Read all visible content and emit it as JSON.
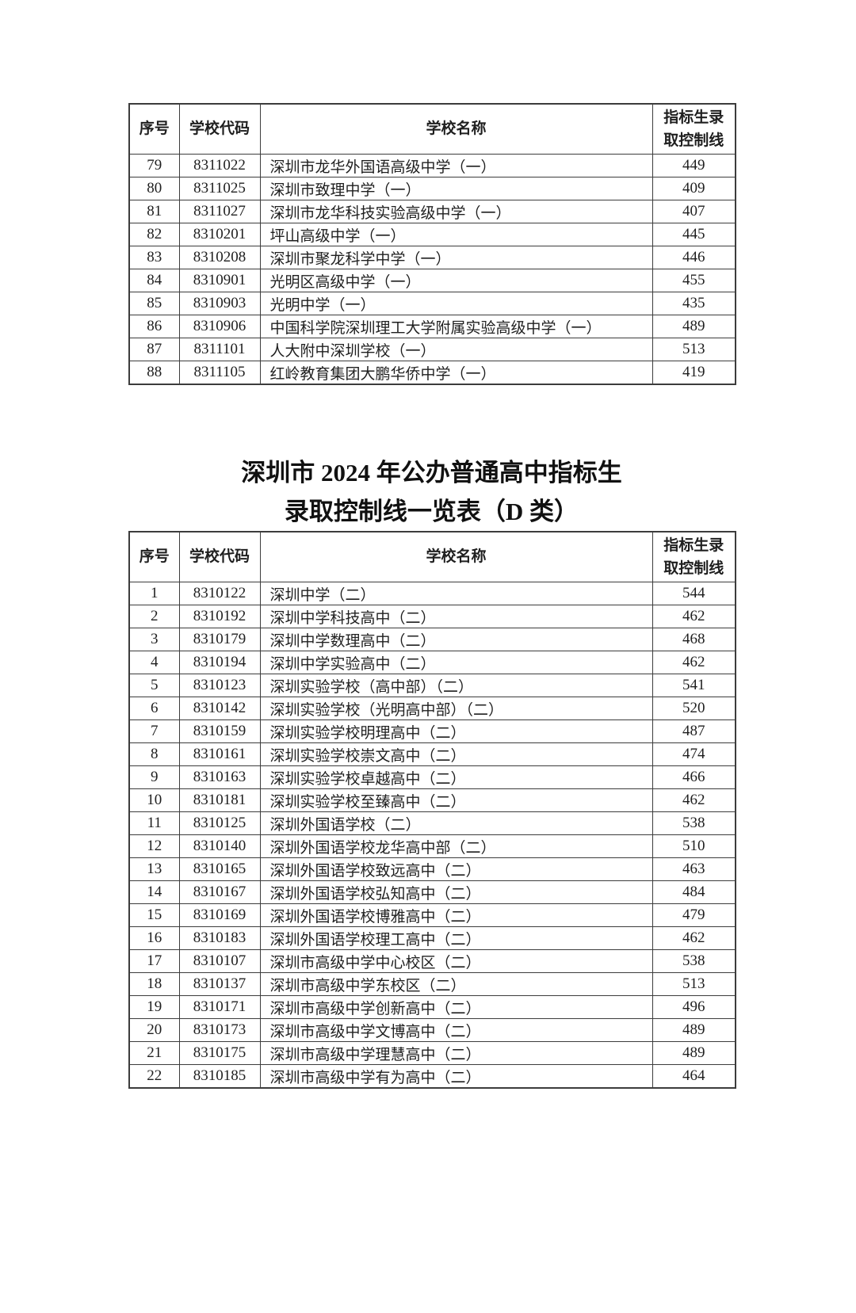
{
  "section_title": {
    "line1": "深圳市 2024 年公办普通高中指标生",
    "line2": "录取控制线一览表（D 类）"
  },
  "table_c": {
    "headers": [
      "序号",
      "学校代码",
      "学校名称",
      "指标生录取控制线"
    ],
    "rows": [
      {
        "no": "79",
        "code": "8311022",
        "name": "深圳市龙华外国语高级中学（一）",
        "score": "449"
      },
      {
        "no": "80",
        "code": "8311025",
        "name": "深圳市致理中学（一）",
        "score": "409"
      },
      {
        "no": "81",
        "code": "8311027",
        "name": "深圳市龙华科技实验高级中学（一）",
        "score": "407"
      },
      {
        "no": "82",
        "code": "8310201",
        "name": "坪山高级中学（一）",
        "score": "445"
      },
      {
        "no": "83",
        "code": "8310208",
        "name": "深圳市聚龙科学中学（一）",
        "score": "446"
      },
      {
        "no": "84",
        "code": "8310901",
        "name": "光明区高级中学（一）",
        "score": "455"
      },
      {
        "no": "85",
        "code": "8310903",
        "name": "光明中学（一）",
        "score": "435"
      },
      {
        "no": "86",
        "code": "8310906",
        "name": "中国科学院深圳理工大学附属实验高级中学（一）",
        "score": "489"
      },
      {
        "no": "87",
        "code": "8311101",
        "name": "人大附中深圳学校（一）",
        "score": "513"
      },
      {
        "no": "88",
        "code": "8311105",
        "name": "红岭教育集团大鹏华侨中学（一）",
        "score": "419"
      }
    ]
  },
  "table_d": {
    "headers": [
      "序号",
      "学校代码",
      "学校名称",
      "指标生录取控制线"
    ],
    "rows": [
      {
        "no": "1",
        "code": "8310122",
        "name": "深圳中学（二）",
        "score": "544"
      },
      {
        "no": "2",
        "code": "8310192",
        "name": "深圳中学科技高中（二）",
        "score": "462"
      },
      {
        "no": "3",
        "code": "8310179",
        "name": "深圳中学数理高中（二）",
        "score": "468"
      },
      {
        "no": "4",
        "code": "8310194",
        "name": "深圳中学实验高中（二）",
        "score": "462"
      },
      {
        "no": "5",
        "code": "8310123",
        "name": "深圳实验学校（高中部）（二）",
        "score": "541"
      },
      {
        "no": "6",
        "code": "8310142",
        "name": "深圳实验学校（光明高中部）（二）",
        "score": "520"
      },
      {
        "no": "7",
        "code": "8310159",
        "name": "深圳实验学校明理高中（二）",
        "score": "487"
      },
      {
        "no": "8",
        "code": "8310161",
        "name": "深圳实验学校崇文高中（二）",
        "score": "474"
      },
      {
        "no": "9",
        "code": "8310163",
        "name": "深圳实验学校卓越高中（二）",
        "score": "466"
      },
      {
        "no": "10",
        "code": "8310181",
        "name": "深圳实验学校至臻高中（二）",
        "score": "462"
      },
      {
        "no": "11",
        "code": "8310125",
        "name": "深圳外国语学校（二）",
        "score": "538"
      },
      {
        "no": "12",
        "code": "8310140",
        "name": "深圳外国语学校龙华高中部（二）",
        "score": "510"
      },
      {
        "no": "13",
        "code": "8310165",
        "name": "深圳外国语学校致远高中（二）",
        "score": "463"
      },
      {
        "no": "14",
        "code": "8310167",
        "name": "深圳外国语学校弘知高中（二）",
        "score": "484"
      },
      {
        "no": "15",
        "code": "8310169",
        "name": "深圳外国语学校博雅高中（二）",
        "score": "479"
      },
      {
        "no": "16",
        "code": "8310183",
        "name": "深圳外国语学校理工高中（二）",
        "score": "462"
      },
      {
        "no": "17",
        "code": "8310107",
        "name": "深圳市高级中学中心校区（二）",
        "score": "538"
      },
      {
        "no": "18",
        "code": "8310137",
        "name": "深圳市高级中学东校区（二）",
        "score": "513"
      },
      {
        "no": "19",
        "code": "8310171",
        "name": "深圳市高级中学创新高中（二）",
        "score": "496"
      },
      {
        "no": "20",
        "code": "8310173",
        "name": "深圳市高级中学文博高中（二）",
        "score": "489"
      },
      {
        "no": "21",
        "code": "8310175",
        "name": "深圳市高级中学理慧高中（二）",
        "score": "489"
      },
      {
        "no": "22",
        "code": "8310185",
        "name": "深圳市高级中学有为高中（二）",
        "score": "464"
      }
    ]
  }
}
